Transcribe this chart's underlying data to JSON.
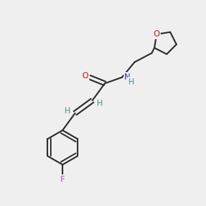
{
  "bg_color": "#efefef",
  "bond_color": "#2d2d2d",
  "atom_colors": {
    "O": "#ee1111",
    "N": "#2222dd",
    "F": "#cc44cc",
    "H": "#4a9090"
  },
  "bond_lw": 1.6,
  "font_size": 8.5
}
